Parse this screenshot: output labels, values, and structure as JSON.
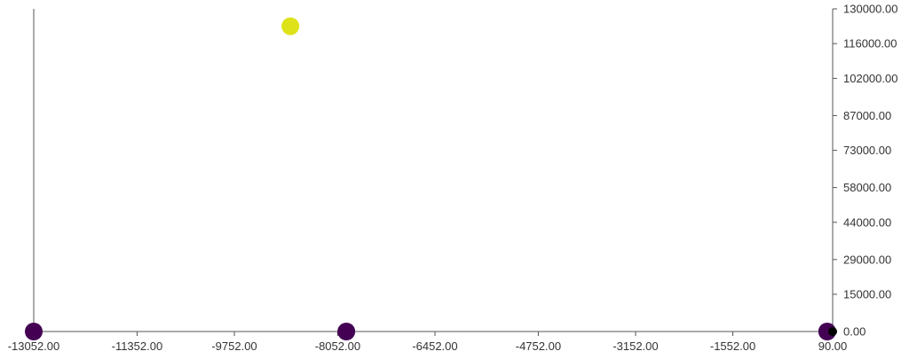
{
  "chart_data": {
    "type": "scatter",
    "title": "",
    "xlabel": "",
    "ylabel": "",
    "xlim": [
      -13052,
      90
    ],
    "ylim": [
      0,
      130000
    ],
    "x_ticks": [
      "-13052.00",
      "-11352.00",
      "-9752.00",
      "-8052.00",
      "-6452.00",
      "-4752.00",
      "-3152.00",
      "-1552.00",
      "90.00"
    ],
    "x_tick_values": [
      -13052,
      -11352,
      -9752,
      -8052,
      -6452,
      -4752,
      -3152,
      -1552,
      90
    ],
    "y_ticks": [
      "0.00",
      "15000.00",
      "29000.00",
      "44000.00",
      "58000.00",
      "73000.00",
      "87000.00",
      "102000.00",
      "116000.00",
      "130000.00"
    ],
    "y_tick_values": [
      0,
      15000,
      29000,
      44000,
      58000,
      73000,
      87000,
      102000,
      116000,
      130000
    ],
    "y_axis_side": "right",
    "grid": false,
    "legend": "none",
    "colors": {
      "low": "#440154",
      "high": "#dde318",
      "small_point": "#000000",
      "axis": "#555555"
    },
    "points": [
      {
        "x": -13052,
        "y": 0,
        "color": "#440154"
      },
      {
        "x": -8830,
        "y": 123000,
        "color": "#dde318"
      },
      {
        "x": -7910,
        "y": 0,
        "color": "#440154"
      },
      {
        "x": 0,
        "y": 0,
        "color": "#440154"
      },
      {
        "x": 90,
        "y": 0,
        "color": "#000000",
        "small": true
      }
    ]
  }
}
